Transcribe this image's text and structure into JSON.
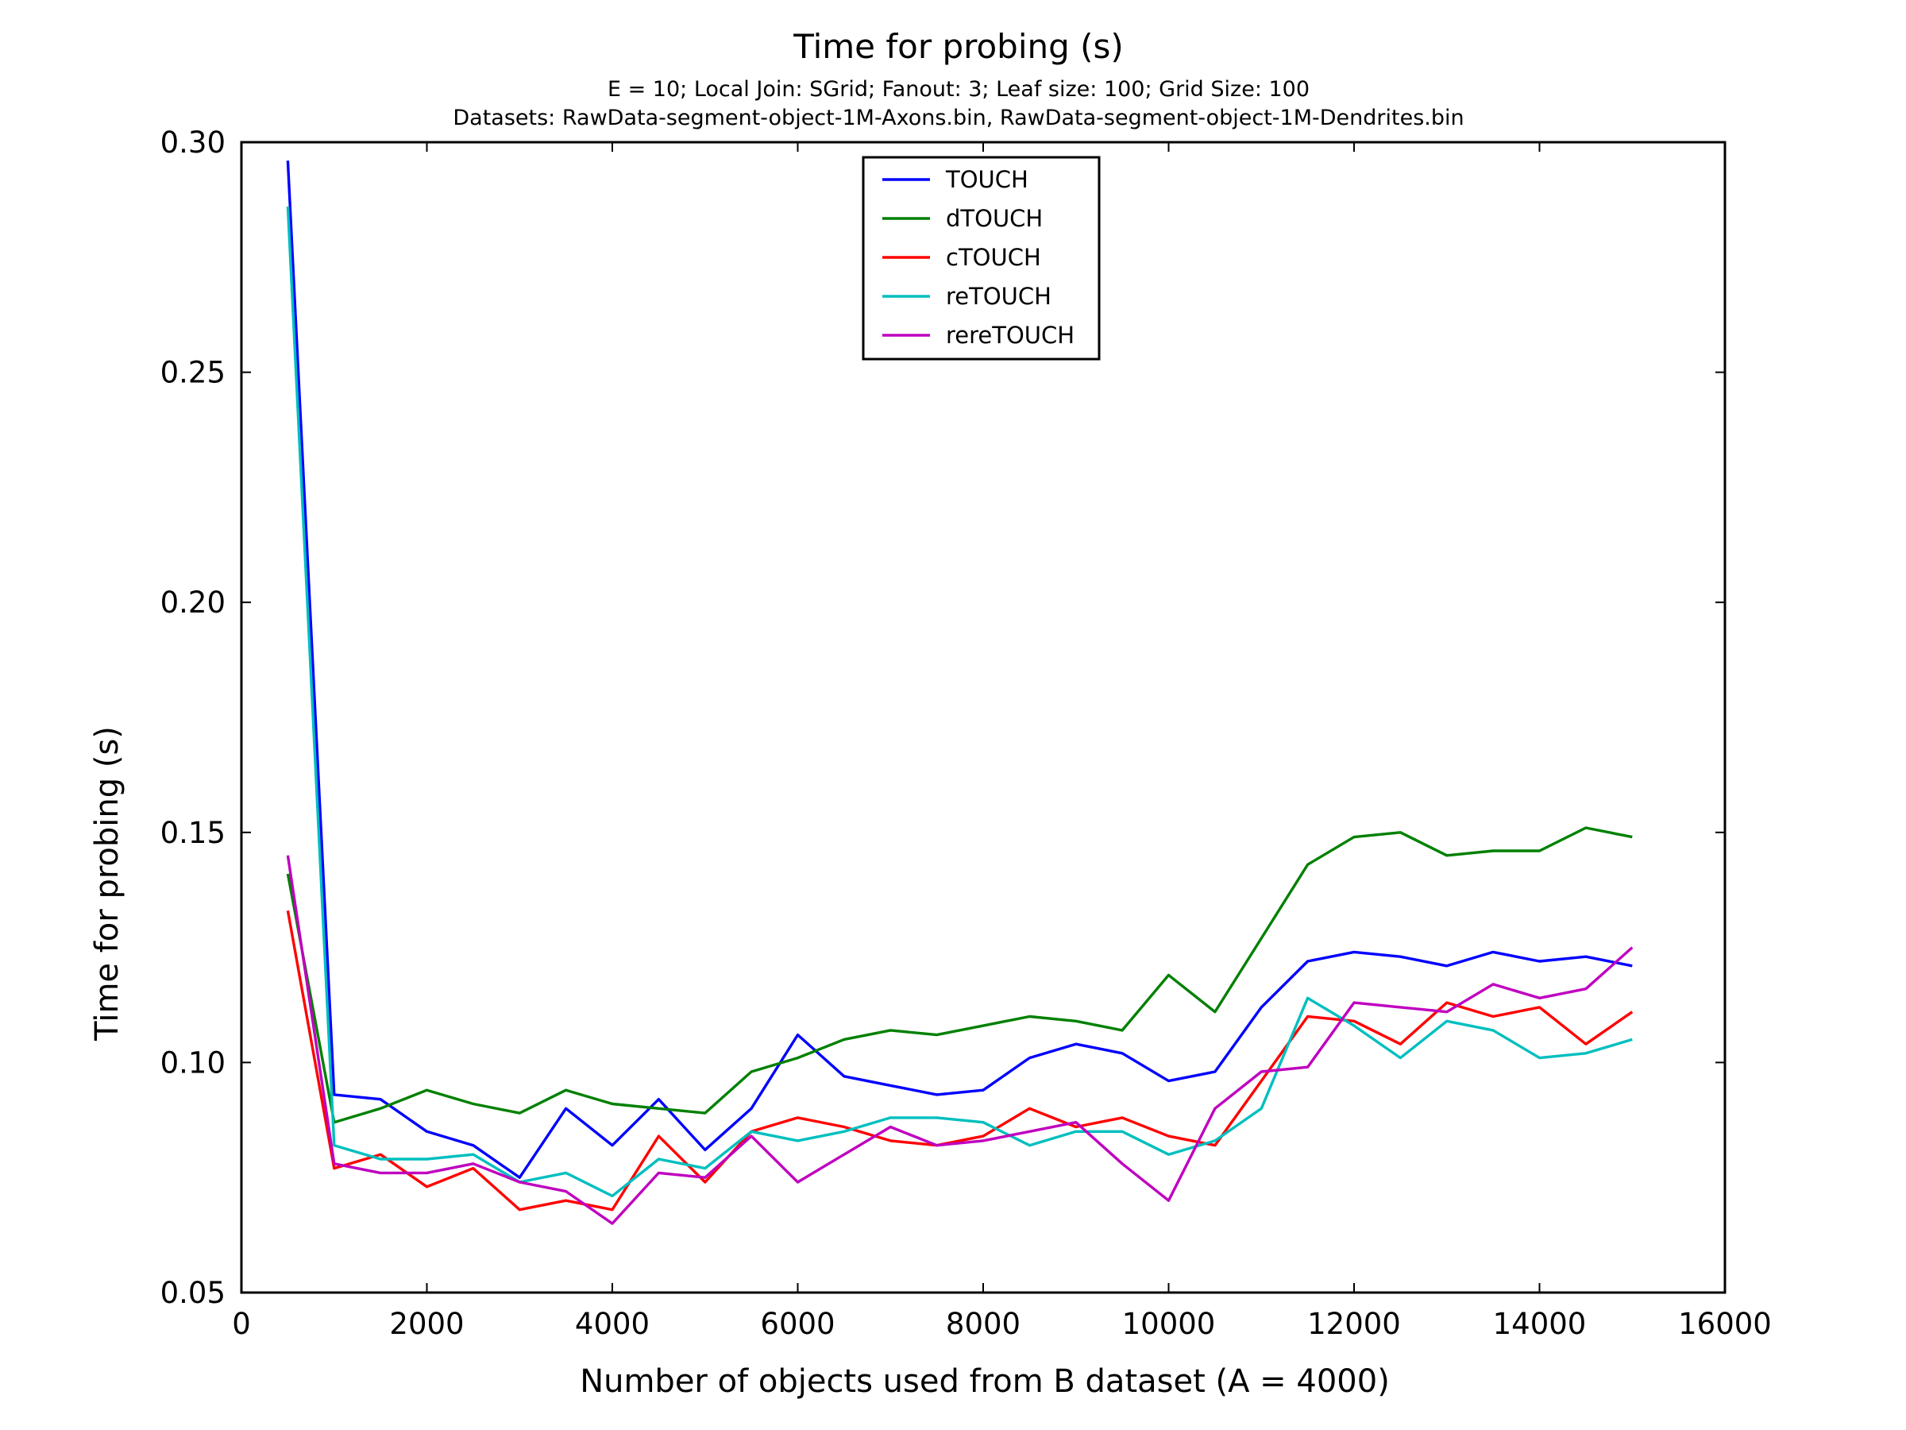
{
  "chart_data": {
    "type": "line",
    "title": "Time for probing (s)",
    "subtitle": [
      "E = 10; Local Join: SGrid; Fanout: 3; Leaf size: 100; Grid Size: 100",
      "Datasets: RawData-segment-object-1M-Axons.bin, RawData-segment-object-1M-Dendrites.bin"
    ],
    "xlabel": "Number of objects used from B dataset (A = 4000)",
    "ylabel": "Time for probing (s)",
    "xlim": [
      0,
      16000
    ],
    "ylim": [
      0.05,
      0.3
    ],
    "xticks": [
      0,
      2000,
      4000,
      6000,
      8000,
      10000,
      12000,
      14000,
      16000
    ],
    "xtick_labels": [
      "0",
      "2000",
      "4000",
      "6000",
      "8000",
      "10000",
      "12000",
      "14000",
      "16000"
    ],
    "yticks": [
      0.05,
      0.1,
      0.15,
      0.2,
      0.25,
      0.3
    ],
    "ytick_labels": [
      "0.05",
      "0.10",
      "0.15",
      "0.20",
      "0.25",
      "0.30"
    ],
    "grid": false,
    "legend_position": "top-center",
    "x": [
      500,
      1000,
      1500,
      2000,
      2500,
      3000,
      3500,
      4000,
      4500,
      5000,
      5500,
      6000,
      6500,
      7000,
      7500,
      8000,
      8500,
      9000,
      9500,
      10000,
      10500,
      11000,
      11500,
      12000,
      12500,
      13000,
      13500,
      14000,
      14500,
      15000
    ],
    "series": [
      {
        "name": "TOUCH",
        "color": "#0000ff",
        "values": [
          0.296,
          0.093,
          0.092,
          0.085,
          0.082,
          0.075,
          0.09,
          0.082,
          0.092,
          0.081,
          0.09,
          0.106,
          0.097,
          0.095,
          0.093,
          0.094,
          0.101,
          0.104,
          0.102,
          0.096,
          0.098,
          0.112,
          0.122,
          0.124,
          0.123,
          0.121,
          0.124,
          0.122,
          0.123,
          0.121
        ]
      },
      {
        "name": "dTOUCH",
        "color": "#008000",
        "values": [
          0.141,
          0.087,
          0.09,
          0.094,
          0.091,
          0.089,
          0.094,
          0.091,
          0.09,
          0.089,
          0.098,
          0.101,
          0.105,
          0.107,
          0.106,
          0.108,
          0.11,
          0.109,
          0.107,
          0.119,
          0.111,
          0.127,
          0.143,
          0.149,
          0.15,
          0.145,
          0.146,
          0.146,
          0.151,
          0.149
        ]
      },
      {
        "name": "cTOUCH",
        "color": "#ff0000",
        "values": [
          0.133,
          0.077,
          0.08,
          0.073,
          0.077,
          0.068,
          0.07,
          0.068,
          0.084,
          0.074,
          0.085,
          0.088,
          0.086,
          0.083,
          0.082,
          0.084,
          0.09,
          0.086,
          0.088,
          0.084,
          0.082,
          0.096,
          0.11,
          0.109,
          0.104,
          0.113,
          0.11,
          0.112,
          0.104,
          0.111
        ]
      },
      {
        "name": "reTOUCH",
        "color": "#00bfbf",
        "values": [
          0.286,
          0.082,
          0.079,
          0.079,
          0.08,
          0.074,
          0.076,
          0.071,
          0.079,
          0.077,
          0.085,
          0.083,
          0.085,
          0.088,
          0.088,
          0.087,
          0.082,
          0.085,
          0.085,
          0.08,
          0.083,
          0.09,
          0.114,
          0.108,
          0.101,
          0.109,
          0.107,
          0.101,
          0.102,
          0.105
        ]
      },
      {
        "name": "rereTOUCH",
        "color": "#bf00bf",
        "values": [
          0.145,
          0.078,
          0.076,
          0.076,
          0.078,
          0.074,
          0.072,
          0.065,
          0.076,
          0.075,
          0.084,
          0.074,
          0.08,
          0.086,
          0.082,
          0.083,
          0.085,
          0.087,
          0.078,
          0.07,
          0.09,
          0.098,
          0.099,
          0.113,
          0.112,
          0.111,
          0.117,
          0.114,
          0.116,
          0.125
        ]
      }
    ]
  }
}
